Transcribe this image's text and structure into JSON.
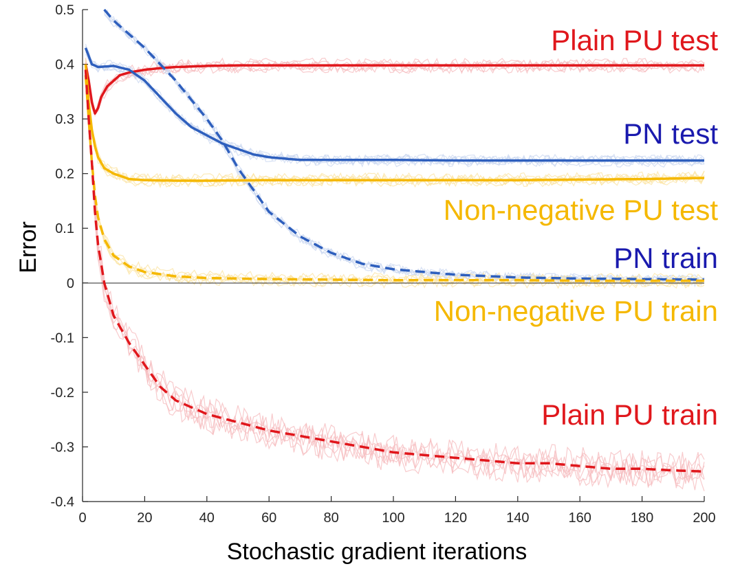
{
  "chart_data": {
    "type": "line",
    "title": "",
    "xlabel": "Stochastic gradient iterations",
    "ylabel": "Error",
    "xlim": [
      0,
      200
    ],
    "ylim": [
      -0.4,
      0.5
    ],
    "xticks": [
      0,
      20,
      40,
      60,
      80,
      100,
      120,
      140,
      160,
      180,
      200
    ],
    "yticks": [
      -0.4,
      -0.3,
      -0.2,
      -0.1,
      0,
      0.1,
      0.2,
      0.3,
      0.4,
      0.5
    ],
    "ytick_labels": [
      "-0.4",
      "-0.3",
      "-0.2",
      "-0.1",
      "0",
      "0.1",
      "0.2",
      "0.3",
      "0.4",
      "0.5"
    ],
    "xtick_labels": [
      "0",
      "20",
      "40",
      "60",
      "80",
      "100",
      "120",
      "140",
      "160",
      "180",
      "200"
    ],
    "zero_line": true,
    "grid": false,
    "legend": "none",
    "series": [
      {
        "name": "Plain PU test",
        "color": "#e0171c",
        "band_color": "#f6b9bc",
        "dash": "solid",
        "x": [
          1,
          2,
          3,
          4,
          5,
          6,
          8,
          10,
          12,
          15,
          20,
          25,
          30,
          40,
          50,
          60,
          80,
          100,
          120,
          140,
          160,
          180,
          200
        ],
        "y": [
          0.4,
          0.37,
          0.33,
          0.31,
          0.32,
          0.34,
          0.36,
          0.37,
          0.38,
          0.385,
          0.39,
          0.393,
          0.395,
          0.397,
          0.398,
          0.398,
          0.398,
          0.398,
          0.398,
          0.398,
          0.398,
          0.398,
          0.398
        ]
      },
      {
        "name": "PN test",
        "color": "#2e5fbd",
        "band_color": "#c9d7f0",
        "dash": "solid",
        "x": [
          1,
          3,
          5,
          10,
          15,
          20,
          25,
          30,
          35,
          40,
          45,
          50,
          55,
          60,
          70,
          80,
          100,
          120,
          140,
          160,
          180,
          200
        ],
        "y": [
          0.43,
          0.4,
          0.395,
          0.397,
          0.39,
          0.37,
          0.34,
          0.31,
          0.285,
          0.27,
          0.255,
          0.245,
          0.235,
          0.23,
          0.225,
          0.225,
          0.225,
          0.224,
          0.224,
          0.224,
          0.224,
          0.224
        ]
      },
      {
        "name": "Non-negative PU test",
        "color": "#f5b800",
        "band_color": "#fbe3a0",
        "dash": "solid",
        "x": [
          1,
          2,
          3,
          4,
          5,
          7,
          10,
          15,
          20,
          30,
          40,
          60,
          80,
          100,
          120,
          140,
          160,
          180,
          200
        ],
        "y": [
          0.4,
          0.33,
          0.28,
          0.25,
          0.23,
          0.21,
          0.2,
          0.19,
          0.188,
          0.187,
          0.187,
          0.188,
          0.188,
          0.188,
          0.188,
          0.188,
          0.189,
          0.19,
          0.192
        ]
      },
      {
        "name": "PN train",
        "color": "#2e5fbd",
        "band_color": "#c9d7f0",
        "dash": "dashed",
        "x": [
          7,
          10,
          20,
          30,
          40,
          45,
          50,
          55,
          60,
          70,
          80,
          90,
          100,
          120,
          140,
          160,
          180,
          200
        ],
        "y": [
          0.5,
          0.48,
          0.43,
          0.37,
          0.3,
          0.26,
          0.21,
          0.17,
          0.13,
          0.085,
          0.055,
          0.035,
          0.025,
          0.015,
          0.01,
          0.008,
          0.007,
          0.006
        ]
      },
      {
        "name": "Non-negative PU train",
        "color": "#f5b800",
        "band_color": "#fbe3a0",
        "dash": "dashed",
        "x": [
          1,
          2,
          3,
          4,
          5,
          7,
          10,
          15,
          20,
          30,
          40,
          60,
          80,
          100,
          120,
          140,
          160,
          180,
          200
        ],
        "y": [
          0.38,
          0.3,
          0.22,
          0.16,
          0.12,
          0.08,
          0.05,
          0.03,
          0.02,
          0.012,
          0.009,
          0.007,
          0.006,
          0.005,
          0.005,
          0.005,
          0.004,
          0.004,
          0.004
        ]
      },
      {
        "name": "Plain PU train",
        "color": "#e0171c",
        "band_color": "#f6b9bc",
        "dash": "dashed",
        "x": [
          1,
          2,
          3,
          4,
          5,
          7,
          10,
          15,
          20,
          25,
          30,
          40,
          50,
          60,
          70,
          80,
          90,
          100,
          110,
          120,
          130,
          140,
          150,
          160,
          170,
          180,
          190,
          200
        ],
        "y": [
          0.39,
          0.3,
          0.22,
          0.13,
          0.07,
          0.0,
          -0.06,
          -0.11,
          -0.15,
          -0.19,
          -0.215,
          -0.24,
          -0.255,
          -0.27,
          -0.28,
          -0.29,
          -0.3,
          -0.31,
          -0.315,
          -0.32,
          -0.325,
          -0.33,
          -0.33,
          -0.335,
          -0.34,
          -0.34,
          -0.343,
          -0.345
        ]
      }
    ],
    "annotations": [
      {
        "text": "Plain PU test",
        "color": "#e0171c"
      },
      {
        "text": "PN test",
        "color": "#1a1aae"
      },
      {
        "text": "Non-negative PU test",
        "color": "#f5b800"
      },
      {
        "text": "PN train",
        "color": "#1a1aae"
      },
      {
        "text": "Non-negative PU train",
        "color": "#f5b800"
      },
      {
        "text": "Plain PU train",
        "color": "#e0171c"
      }
    ]
  }
}
